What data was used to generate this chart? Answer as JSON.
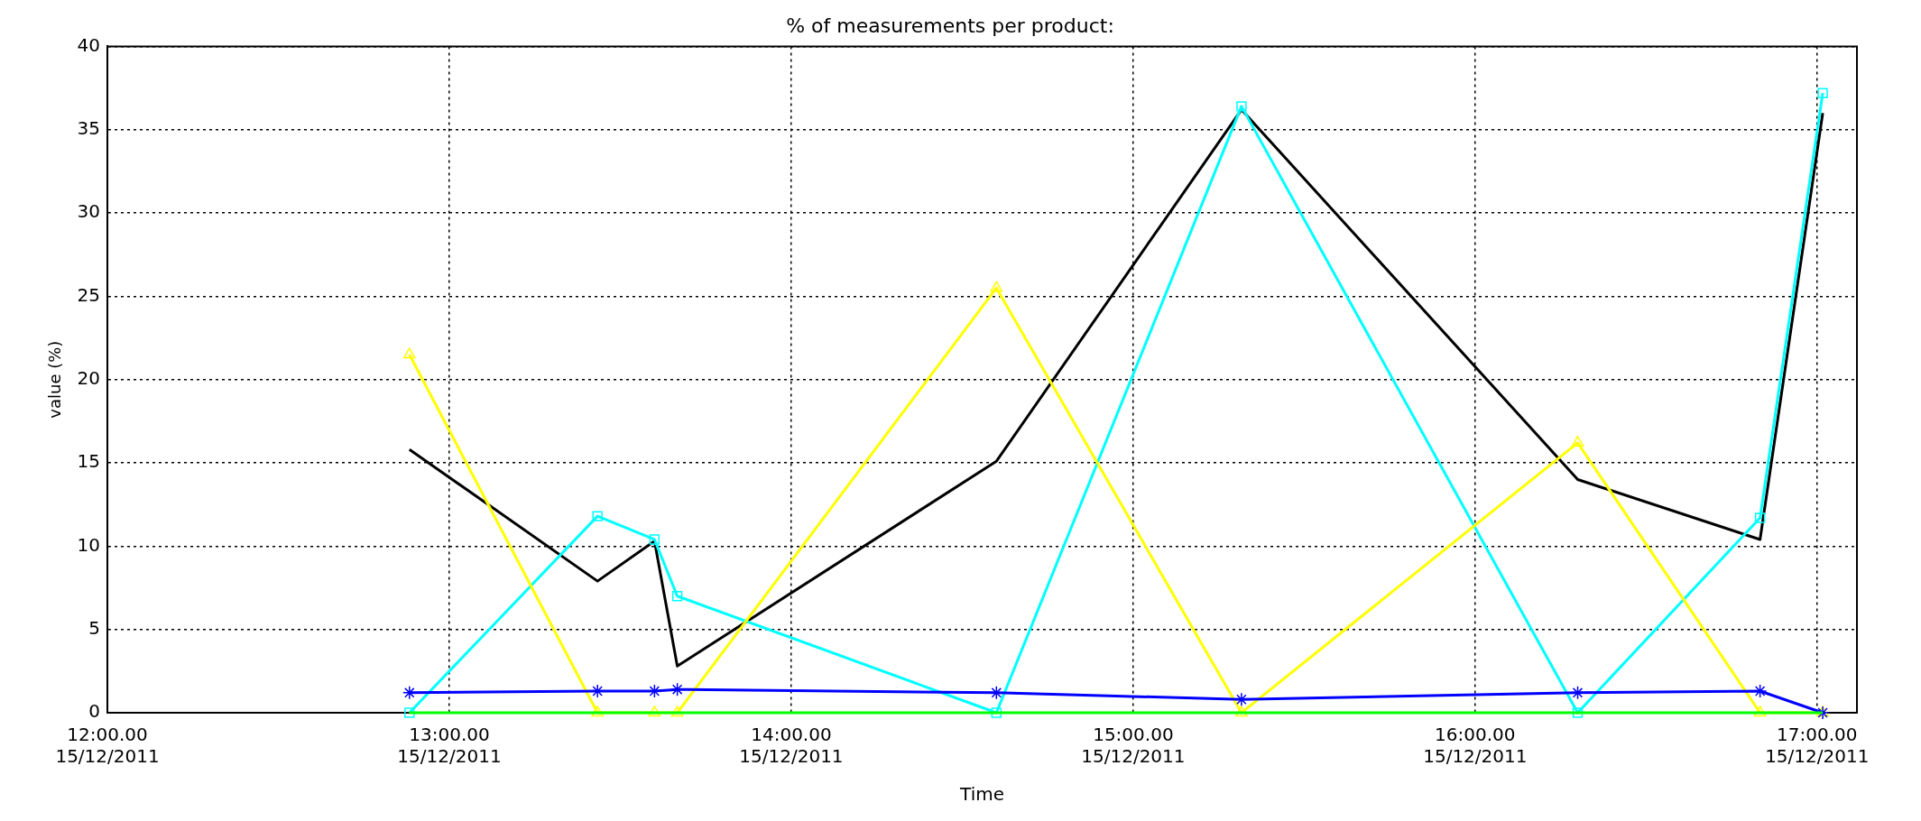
{
  "chart_data": {
    "type": "line",
    "title": "% of measurements per product:",
    "xlabel": "Time",
    "ylabel": "value (%)",
    "x": [
      "2011-12-15T12:53",
      "2011-12-15T13:26",
      "2011-12-15T13:36",
      "2011-12-15T13:40",
      "2011-12-15T14:36",
      "2011-12-15T15:19",
      "2011-12-15T16:18",
      "2011-12-15T16:50",
      "2011-12-15T17:01"
    ],
    "series": [
      {
        "color": "#000000",
        "values": [
          15.8,
          7.9,
          10.3,
          2.8,
          15.1,
          36.2,
          14.0,
          10.4,
          36.0
        ],
        "marker": "none"
      },
      {
        "color": "#00ffff",
        "values": [
          0,
          11.8,
          10.4,
          7.0,
          0,
          36.4,
          0,
          11.7,
          37.2
        ],
        "marker": "square"
      },
      {
        "color": "#ffff00",
        "values": [
          21.5,
          0,
          0,
          0,
          25.5,
          0,
          16.2,
          0,
          0
        ],
        "marker": "triangle"
      },
      {
        "color": "#0000ff",
        "values": [
          1.2,
          1.3,
          1.3,
          1.4,
          1.2,
          0.8,
          1.2,
          1.3,
          0
        ],
        "marker": "cross"
      },
      {
        "color": "#00ff00",
        "values": [
          0,
          0,
          0,
          0,
          0,
          0,
          0,
          0,
          0
        ],
        "marker": "none"
      }
    ],
    "xlim": [
      "2011-12-15T12:00",
      "2011-12-15T17:07"
    ],
    "xticks": [
      {
        "value": "2011-12-15T12:00",
        "label": "12:00.00\n15/12/2011"
      },
      {
        "value": "2011-12-15T13:00",
        "label": "13:00.00\n15/12/2011"
      },
      {
        "value": "2011-12-15T14:00",
        "label": "14:00.00\n15/12/2011"
      },
      {
        "value": "2011-12-15T15:00",
        "label": "15:00.00\n15/12/2011"
      },
      {
        "value": "2011-12-15T16:00",
        "label": "16:00.00\n15/12/2011"
      },
      {
        "value": "2011-12-15T17:00",
        "label": "17:00.00\n15/12/2011"
      }
    ],
    "ylim": [
      0,
      40
    ],
    "yticks": [
      0,
      5,
      10,
      15,
      20,
      25,
      30,
      35,
      40
    ],
    "grid": true,
    "legend": false,
    "line_style": "solid"
  }
}
